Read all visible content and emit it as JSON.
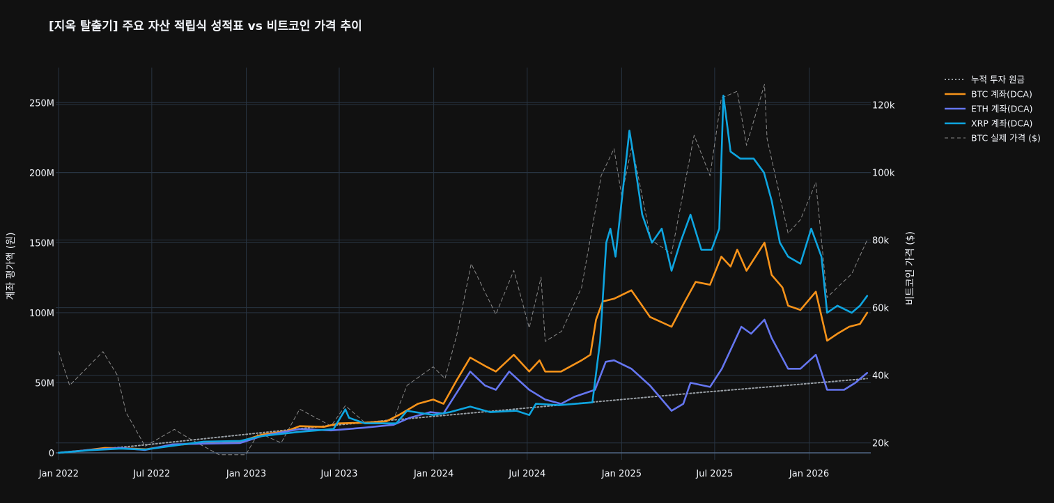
{
  "chart_data": {
    "type": "line",
    "title": "[지옥 탈출기] 주요 자산 적립식 성적표 vs 비트코인 가격 추이",
    "xlabel": "",
    "y_left_label": "계좌 평가액 (원)",
    "y_right_label": "비트코인 가격 ($)",
    "x_ticks": [
      "Jan 2022",
      "Jul 2022",
      "Jan 2023",
      "Jul 2023",
      "Jan 2024",
      "Jul 2024",
      "Jan 2025",
      "Jul 2025",
      "Jan 2026"
    ],
    "y_left_ticks": [
      "0",
      "50M",
      "100M",
      "150M",
      "200M",
      "250M"
    ],
    "y_right_ticks": [
      "20k",
      "40k",
      "60k",
      "80k",
      "100k",
      "120k"
    ],
    "ylim_left": [
      -5000000,
      275000000
    ],
    "ylim_right": [
      15000,
      131000
    ],
    "x_range": [
      "2021-12-26",
      "2026-05-01"
    ],
    "grid": true,
    "legend_position": "top-right",
    "background": "#111111",
    "series": [
      {
        "name": "누적 투자 원금",
        "axis": "left",
        "color": "#9aa0a6",
        "style": "dotted",
        "points": [
          [
            "2022-01-01",
            0
          ],
          [
            "2022-06-01",
            5000000
          ],
          [
            "2022-12-01",
            12000000
          ],
          [
            "2023-06-01",
            19000000
          ],
          [
            "2023-12-01",
            25000000
          ],
          [
            "2024-06-01",
            31000000
          ],
          [
            "2024-12-01",
            37000000
          ],
          [
            "2025-06-01",
            43000000
          ],
          [
            "2025-12-01",
            48500000
          ],
          [
            "2026-04-24",
            53000000
          ]
        ]
      },
      {
        "name": "BTC 계좌(DCA)",
        "axis": "left",
        "color": "#f7931a",
        "style": "solid",
        "points": [
          [
            "2022-01-01",
            0
          ],
          [
            "2022-02-15",
            1500000
          ],
          [
            "2022-04-01",
            3500000
          ],
          [
            "2022-05-15",
            3200000
          ],
          [
            "2022-06-20",
            2500000
          ],
          [
            "2022-08-01",
            5000000
          ],
          [
            "2022-09-15",
            6500000
          ],
          [
            "2022-11-15",
            7000000
          ],
          [
            "2022-12-20",
            8000000
          ],
          [
            "2023-02-01",
            13000000
          ],
          [
            "2023-03-20",
            15500000
          ],
          [
            "2023-04-15",
            19000000
          ],
          [
            "2023-06-01",
            18500000
          ],
          [
            "2023-07-01",
            21000000
          ],
          [
            "2023-08-20",
            21500000
          ],
          [
            "2023-10-01",
            22500000
          ],
          [
            "2023-10-25",
            27000000
          ],
          [
            "2023-12-01",
            35000000
          ],
          [
            "2023-12-31",
            38000000
          ],
          [
            "2024-01-20",
            35000000
          ],
          [
            "2024-02-15",
            52000000
          ],
          [
            "2024-03-12",
            68000000
          ],
          [
            "2024-04-10",
            62000000
          ],
          [
            "2024-05-01",
            58000000
          ],
          [
            "2024-06-05",
            70000000
          ],
          [
            "2024-07-05",
            58000000
          ],
          [
            "2024-07-25",
            66000000
          ],
          [
            "2024-08-05",
            58000000
          ],
          [
            "2024-09-05",
            58000000
          ],
          [
            "2024-10-15",
            66000000
          ],
          [
            "2024-11-01",
            70000000
          ],
          [
            "2024-11-12",
            95000000
          ],
          [
            "2024-11-25",
            108000000
          ],
          [
            "2024-12-17",
            110000000
          ],
          [
            "2025-01-20",
            116000000
          ],
          [
            "2025-02-25",
            97000000
          ],
          [
            "2025-03-15",
            94000000
          ],
          [
            "2025-04-08",
            90000000
          ],
          [
            "2025-05-01",
            106000000
          ],
          [
            "2025-05-25",
            122000000
          ],
          [
            "2025-06-22",
            120000000
          ],
          [
            "2025-07-14",
            140000000
          ],
          [
            "2025-08-01",
            133000000
          ],
          [
            "2025-08-14",
            145000000
          ],
          [
            "2025-09-01",
            130000000
          ],
          [
            "2025-10-06",
            150000000
          ],
          [
            "2025-10-20",
            127000000
          ],
          [
            "2025-11-10",
            118000000
          ],
          [
            "2025-11-21",
            105000000
          ],
          [
            "2025-12-15",
            102000000
          ],
          [
            "2026-01-14",
            115000000
          ],
          [
            "2026-02-05",
            80000000
          ],
          [
            "2026-02-25",
            85000000
          ],
          [
            "2026-03-20",
            90000000
          ],
          [
            "2026-04-10",
            92000000
          ],
          [
            "2026-04-24",
            100000000
          ]
        ]
      },
      {
        "name": "ETH 계좌(DCA)",
        "axis": "left",
        "color": "#6576f0",
        "style": "solid",
        "points": [
          [
            "2022-01-01",
            0
          ],
          [
            "2022-03-01",
            2000000
          ],
          [
            "2022-05-01",
            3500000
          ],
          [
            "2022-06-18",
            2000000
          ],
          [
            "2022-08-10",
            6000000
          ],
          [
            "2022-10-01",
            6500000
          ],
          [
            "2022-12-20",
            7000000
          ],
          [
            "2023-02-01",
            12000000
          ],
          [
            "2023-04-15",
            17000000
          ],
          [
            "2023-06-15",
            16000000
          ],
          [
            "2023-08-20",
            18000000
          ],
          [
            "2023-10-15",
            20000000
          ],
          [
            "2023-11-15",
            25000000
          ],
          [
            "2023-12-25",
            29000000
          ],
          [
            "2024-01-20",
            28000000
          ],
          [
            "2024-03-12",
            58000000
          ],
          [
            "2024-04-10",
            48000000
          ],
          [
            "2024-05-01",
            45000000
          ],
          [
            "2024-05-27",
            58000000
          ],
          [
            "2024-07-05",
            45000000
          ],
          [
            "2024-08-05",
            38000000
          ],
          [
            "2024-09-05",
            35000000
          ],
          [
            "2024-10-01",
            40000000
          ],
          [
            "2024-11-10",
            45000000
          ],
          [
            "2024-12-01",
            65000000
          ],
          [
            "2024-12-17",
            66000000
          ],
          [
            "2025-01-20",
            60000000
          ],
          [
            "2025-02-25",
            48000000
          ],
          [
            "2025-04-08",
            30000000
          ],
          [
            "2025-05-01",
            35000000
          ],
          [
            "2025-05-15",
            50000000
          ],
          [
            "2025-06-22",
            47000000
          ],
          [
            "2025-07-15",
            60000000
          ],
          [
            "2025-08-22",
            90000000
          ],
          [
            "2025-09-10",
            85000000
          ],
          [
            "2025-10-06",
            95000000
          ],
          [
            "2025-10-20",
            82000000
          ],
          [
            "2025-11-21",
            60000000
          ],
          [
            "2025-12-15",
            60000000
          ],
          [
            "2026-01-14",
            70000000
          ],
          [
            "2026-02-05",
            45000000
          ],
          [
            "2026-03-10",
            45000000
          ],
          [
            "2026-04-01",
            50000000
          ],
          [
            "2026-04-24",
            57000000
          ]
        ]
      },
      {
        "name": "XRP 계좌(DCA)",
        "axis": "left",
        "color": "#0ea5e0",
        "style": "solid",
        "points": [
          [
            "2022-01-01",
            0
          ],
          [
            "2022-03-01",
            1800000
          ],
          [
            "2022-05-01",
            3000000
          ],
          [
            "2022-06-18",
            2300000
          ],
          [
            "2022-08-10",
            5000000
          ],
          [
            "2022-10-10",
            8000000
          ],
          [
            "2022-12-20",
            8500000
          ],
          [
            "2023-02-01",
            12000000
          ],
          [
            "2023-04-15",
            15000000
          ],
          [
            "2023-06-20",
            17000000
          ],
          [
            "2023-07-13",
            31000000
          ],
          [
            "2023-07-20",
            25000000
          ],
          [
            "2023-08-20",
            21000000
          ],
          [
            "2023-10-20",
            21000000
          ],
          [
            "2023-11-10",
            30000000
          ],
          [
            "2023-12-31",
            27000000
          ],
          [
            "2024-02-01",
            29000000
          ],
          [
            "2024-03-12",
            33000000
          ],
          [
            "2024-04-20",
            29000000
          ],
          [
            "2024-06-10",
            30000000
          ],
          [
            "2024-07-05",
            27000000
          ],
          [
            "2024-07-18",
            35000000
          ],
          [
            "2024-09-01",
            34000000
          ],
          [
            "2024-11-05",
            36000000
          ],
          [
            "2024-11-20",
            80000000
          ],
          [
            "2024-12-02",
            150000000
          ],
          [
            "2024-12-10",
            160000000
          ],
          [
            "2024-12-20",
            140000000
          ],
          [
            "2025-01-16",
            230000000
          ],
          [
            "2025-01-25",
            210000000
          ],
          [
            "2025-02-10",
            170000000
          ],
          [
            "2025-03-01",
            150000000
          ],
          [
            "2025-03-20",
            160000000
          ],
          [
            "2025-04-08",
            130000000
          ],
          [
            "2025-04-25",
            150000000
          ],
          [
            "2025-05-15",
            170000000
          ],
          [
            "2025-06-05",
            145000000
          ],
          [
            "2025-06-25",
            145000000
          ],
          [
            "2025-07-10",
            160000000
          ],
          [
            "2025-07-18",
            255000000
          ],
          [
            "2025-08-01",
            215000000
          ],
          [
            "2025-08-20",
            210000000
          ],
          [
            "2025-09-15",
            210000000
          ],
          [
            "2025-10-05",
            200000000
          ],
          [
            "2025-10-20",
            180000000
          ],
          [
            "2025-11-05",
            150000000
          ],
          [
            "2025-11-21",
            140000000
          ],
          [
            "2025-12-15",
            135000000
          ],
          [
            "2026-01-05",
            160000000
          ],
          [
            "2026-01-25",
            140000000
          ],
          [
            "2026-02-05",
            100000000
          ],
          [
            "2026-02-25",
            105000000
          ],
          [
            "2026-03-25",
            100000000
          ],
          [
            "2026-04-10",
            105000000
          ],
          [
            "2026-04-24",
            112000000
          ]
        ]
      },
      {
        "name": "BTC 실제 가격 ($)",
        "axis": "right",
        "color": "#8a8a8a",
        "style": "dashed",
        "points": [
          [
            "2022-01-01",
            47000
          ],
          [
            "2022-01-22",
            37000
          ],
          [
            "2022-03-28",
            47000
          ],
          [
            "2022-04-25",
            40000
          ],
          [
            "2022-05-12",
            29000
          ],
          [
            "2022-06-18",
            19000
          ],
          [
            "2022-08-14",
            24000
          ],
          [
            "2022-09-10",
            21500
          ],
          [
            "2022-11-09",
            16500
          ],
          [
            "2022-12-31",
            16500
          ],
          [
            "2023-01-25",
            23000
          ],
          [
            "2023-03-10",
            20000
          ],
          [
            "2023-04-15",
            30000
          ],
          [
            "2023-06-15",
            25000
          ],
          [
            "2023-07-13",
            31000
          ],
          [
            "2023-08-20",
            26000
          ],
          [
            "2023-10-15",
            27000
          ],
          [
            "2023-11-10",
            37000
          ],
          [
            "2023-12-31",
            42500
          ],
          [
            "2024-01-23",
            39000
          ],
          [
            "2024-02-15",
            52000
          ],
          [
            "2024-03-14",
            73000
          ],
          [
            "2024-05-01",
            58000
          ],
          [
            "2024-06-05",
            71000
          ],
          [
            "2024-07-05",
            54000
          ],
          [
            "2024-07-28",
            69000
          ],
          [
            "2024-08-05",
            50000
          ],
          [
            "2024-09-06",
            53000
          ],
          [
            "2024-10-15",
            66000
          ],
          [
            "2024-11-11",
            89000
          ],
          [
            "2024-11-22",
            99000
          ],
          [
            "2024-12-17",
            107000
          ],
          [
            "2025-01-01",
            93000
          ],
          [
            "2025-01-21",
            108000
          ],
          [
            "2025-02-27",
            80000
          ],
          [
            "2025-04-08",
            76000
          ],
          [
            "2025-05-22",
            111000
          ],
          [
            "2025-06-22",
            99000
          ],
          [
            "2025-07-14",
            122000
          ],
          [
            "2025-08-14",
            124000
          ],
          [
            "2025-09-01",
            108000
          ],
          [
            "2025-10-06",
            126000
          ],
          [
            "2025-10-11",
            110000
          ],
          [
            "2025-11-21",
            82000
          ],
          [
            "2025-12-15",
            86000
          ],
          [
            "2026-01-14",
            97000
          ],
          [
            "2026-02-05",
            63000
          ],
          [
            "2026-02-25",
            66000
          ],
          [
            "2026-03-25",
            70000
          ],
          [
            "2026-04-24",
            80000
          ]
        ]
      }
    ]
  }
}
